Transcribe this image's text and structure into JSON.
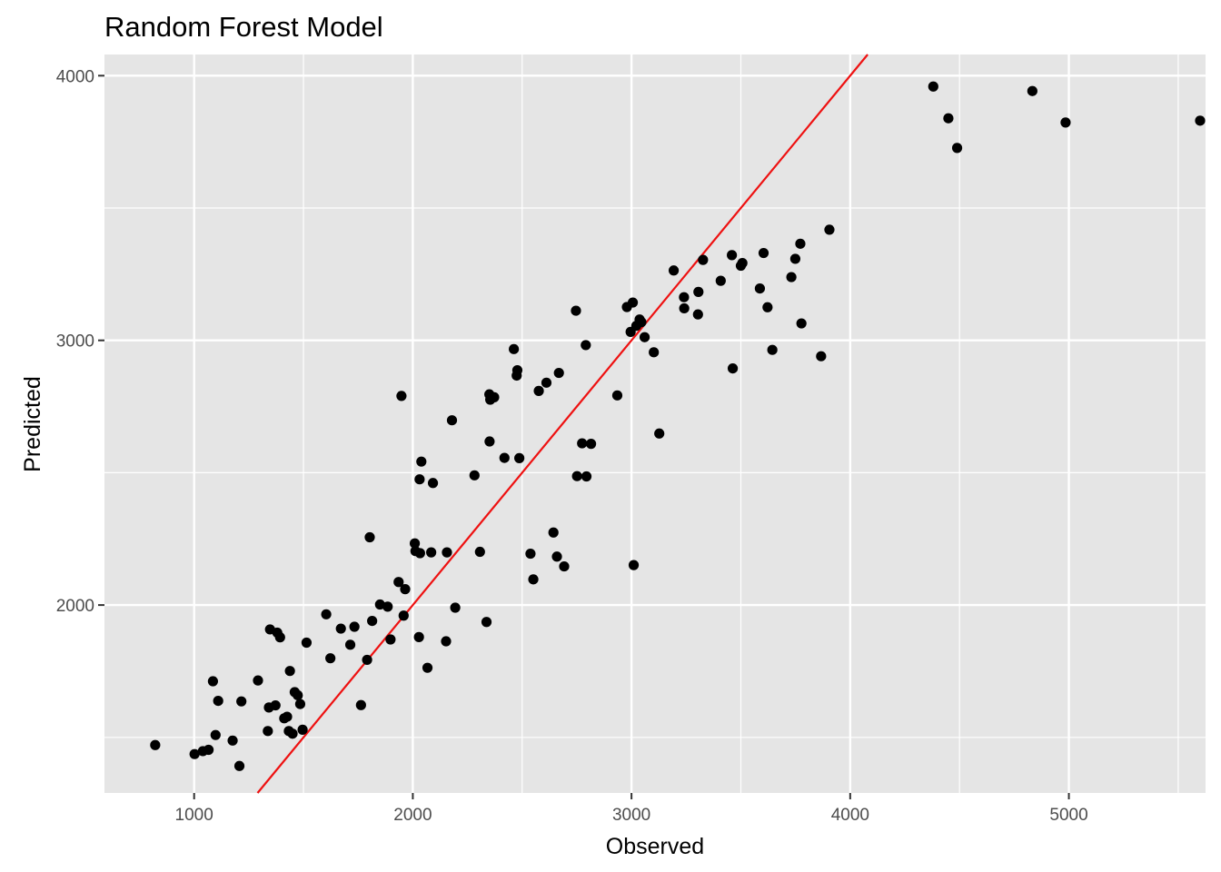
{
  "chart_data": {
    "type": "scatter",
    "title": "Random Forest Model",
    "xlabel": "Observed",
    "ylabel": "Predicted",
    "xlim": [
      590,
      5625
    ],
    "ylim": [
      1290,
      4080
    ],
    "x_ticks": [
      1000,
      2000,
      3000,
      4000,
      5000
    ],
    "x_tick_labels": [
      "1000",
      "2000",
      "3000",
      "4000",
      "5000"
    ],
    "y_ticks": [
      2000,
      3000,
      4000
    ],
    "y_tick_labels": [
      "2000",
      "3000",
      "4000"
    ],
    "x_minor_gridlines": [
      1500,
      2500,
      3500,
      4500,
      5500
    ],
    "y_minor_gridlines": [
      1500,
      2500,
      3500
    ],
    "grid": true,
    "panel_background": "#e5e5e5",
    "gridline_color": "#ffffff",
    "point_color": "#000000",
    "reference_line": {
      "slope": 1,
      "intercept": 0,
      "color": "#ee1111"
    },
    "points": [
      [
        822,
        1471
      ],
      [
        1002,
        1437
      ],
      [
        1040,
        1448
      ],
      [
        1066,
        1453
      ],
      [
        1086,
        1712
      ],
      [
        1098,
        1509
      ],
      [
        1110,
        1638
      ],
      [
        1176,
        1488
      ],
      [
        1207,
        1392
      ],
      [
        1216,
        1636
      ],
      [
        1292,
        1715
      ],
      [
        1337,
        1524
      ],
      [
        1342,
        1613
      ],
      [
        1347,
        1908
      ],
      [
        1372,
        1621
      ],
      [
        1380,
        1896
      ],
      [
        1393,
        1878
      ],
      [
        1412,
        1572
      ],
      [
        1425,
        1578
      ],
      [
        1433,
        1524
      ],
      [
        1438,
        1751
      ],
      [
        1450,
        1514
      ],
      [
        1460,
        1671
      ],
      [
        1474,
        1659
      ],
      [
        1485,
        1626
      ],
      [
        1496,
        1529
      ],
      [
        1514,
        1858
      ],
      [
        1604,
        1965
      ],
      [
        1623,
        1799
      ],
      [
        1671,
        1911
      ],
      [
        1714,
        1850
      ],
      [
        1733,
        1918
      ],
      [
        1763,
        1622
      ],
      [
        1791,
        1793
      ],
      [
        1803,
        2256
      ],
      [
        1814,
        1940
      ],
      [
        1850,
        2002
      ],
      [
        1885,
        1994
      ],
      [
        1898,
        1870
      ],
      [
        1935,
        2087
      ],
      [
        1948,
        2790
      ],
      [
        1958,
        1960
      ],
      [
        1965,
        2060
      ],
      [
        2009,
        2233
      ],
      [
        2012,
        2204
      ],
      [
        2028,
        1879
      ],
      [
        2031,
        2475
      ],
      [
        2033,
        2196
      ],
      [
        2039,
        2542
      ],
      [
        2067,
        1763
      ],
      [
        2084,
        2199
      ],
      [
        2092,
        2461
      ],
      [
        2152,
        1863
      ],
      [
        2156,
        2199
      ],
      [
        2179,
        2698
      ],
      [
        2194,
        1990
      ],
      [
        2282,
        2490
      ],
      [
        2307,
        2201
      ],
      [
        2337,
        1936
      ],
      [
        2350,
        2796
      ],
      [
        2351,
        2618
      ],
      [
        2354,
        2776
      ],
      [
        2372,
        2785
      ],
      [
        2419,
        2556
      ],
      [
        2462,
        2967
      ],
      [
        2475,
        2867
      ],
      [
        2478,
        2887
      ],
      [
        2487,
        2555
      ],
      [
        2538,
        2194
      ],
      [
        2551,
        2097
      ],
      [
        2576,
        2809
      ],
      [
        2611,
        2840
      ],
      [
        2643,
        2274
      ],
      [
        2659,
        2183
      ],
      [
        2668,
        2877
      ],
      [
        2692,
        2146
      ],
      [
        2746,
        3112
      ],
      [
        2751,
        2487
      ],
      [
        2774,
        2611
      ],
      [
        2791,
        2982
      ],
      [
        2794,
        2486
      ],
      [
        2815,
        2609
      ],
      [
        2935,
        2792
      ],
      [
        2979,
        3126
      ],
      [
        2996,
        3032
      ],
      [
        3006,
        3143
      ],
      [
        3010,
        2151
      ],
      [
        3022,
        3055
      ],
      [
        3037,
        3079
      ],
      [
        3045,
        3069
      ],
      [
        3060,
        3012
      ],
      [
        3102,
        2955
      ],
      [
        3127,
        2648
      ],
      [
        3193,
        3264
      ],
      [
        3240,
        3163
      ],
      [
        3241,
        3121
      ],
      [
        3304,
        3098
      ],
      [
        3306,
        3183
      ],
      [
        3327,
        3304
      ],
      [
        3408,
        3225
      ],
      [
        3459,
        3322
      ],
      [
        3463,
        2894
      ],
      [
        3500,
        3282
      ],
      [
        3507,
        3292
      ],
      [
        3587,
        3196
      ],
      [
        3604,
        3330
      ],
      [
        3622,
        3125
      ],
      [
        3644,
        2964
      ],
      [
        3731,
        3239
      ],
      [
        3749,
        3308
      ],
      [
        3772,
        3365
      ],
      [
        3777,
        3064
      ],
      [
        3867,
        2940
      ],
      [
        3905,
        3418
      ],
      [
        4380,
        3959
      ],
      [
        4449,
        3839
      ],
      [
        4489,
        3727
      ],
      [
        4833,
        3942
      ],
      [
        4985,
        3823
      ],
      [
        5600,
        3830
      ]
    ]
  }
}
